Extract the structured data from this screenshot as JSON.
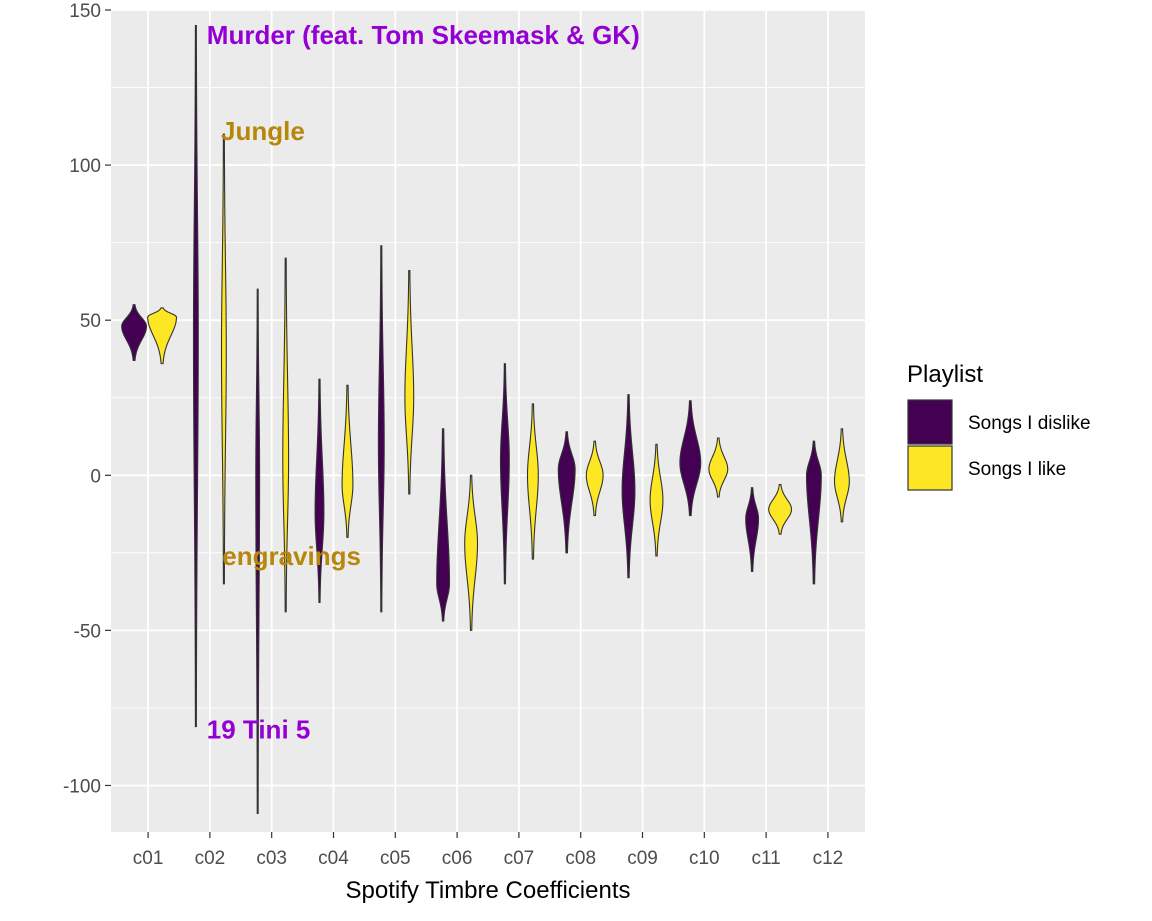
{
  "chart_data": {
    "type": "violin",
    "title": "",
    "xlabel": "Spotify Timbre Coefficients",
    "ylabel": "",
    "ylim": [
      -115,
      150
    ],
    "yticks": [
      150,
      100,
      50,
      0,
      -50,
      -100
    ],
    "ytick_labels": [
      "150",
      "100",
      "50",
      "0",
      "-50",
      "-100"
    ],
    "grid": true,
    "categories": [
      "c01",
      "c02",
      "c03",
      "c04",
      "c05",
      "c06",
      "c07",
      "c08",
      "c09",
      "c10",
      "c11",
      "c12"
    ],
    "legend": {
      "title": "Playlist",
      "position": "right",
      "entries": [
        {
          "name": "Songs I dislike",
          "color": "#440154"
        },
        {
          "name": "Songs I like",
          "color": "#fde725"
        }
      ]
    },
    "series": [
      {
        "name": "Songs I dislike",
        "color": "#440154",
        "violins": [
          {
            "min": 37,
            "max": 55,
            "mode": 48,
            "halfwidth": 12
          },
          {
            "min": -81,
            "max": 145,
            "mode": 45,
            "halfwidth": 2
          },
          {
            "min": -109,
            "max": 60,
            "mode": 0,
            "halfwidth": 1.5
          },
          {
            "min": -41,
            "max": 31,
            "mode": -12,
            "halfwidth": 4
          },
          {
            "min": -44,
            "max": 74,
            "mode": 10,
            "halfwidth": 2.5
          },
          {
            "min": -47,
            "max": 15,
            "mode": -35,
            "halfwidth": 6
          },
          {
            "min": -35,
            "max": 36,
            "mode": 5,
            "halfwidth": 4
          },
          {
            "min": -25,
            "max": 14,
            "mode": 2,
            "halfwidth": 8
          },
          {
            "min": -33,
            "max": 26,
            "mode": -5,
            "halfwidth": 6
          },
          {
            "min": -13,
            "max": 24,
            "mode": 4,
            "halfwidth": 10
          },
          {
            "min": -31,
            "max": -4,
            "mode": -14,
            "halfwidth": 6
          },
          {
            "min": -35,
            "max": 11,
            "mode": 0,
            "halfwidth": 7
          }
        ]
      },
      {
        "name": "Songs I like",
        "color": "#fde725",
        "violins": [
          {
            "min": 36,
            "max": 54,
            "mode": 51,
            "halfwidth": 14
          },
          {
            "min": -35,
            "max": 110,
            "mode": 40,
            "halfwidth": 2
          },
          {
            "min": -44,
            "max": 70,
            "mode": 5,
            "halfwidth": 2.5
          },
          {
            "min": -20,
            "max": 29,
            "mode": -3,
            "halfwidth": 5
          },
          {
            "min": -6,
            "max": 66,
            "mode": 25,
            "halfwidth": 4
          },
          {
            "min": -50,
            "max": 0,
            "mode": -22,
            "halfwidth": 6
          },
          {
            "min": -27,
            "max": 23,
            "mode": 0,
            "halfwidth": 5
          },
          {
            "min": -13,
            "max": 11,
            "mode": 0,
            "halfwidth": 8
          },
          {
            "min": -26,
            "max": 10,
            "mode": -8,
            "halfwidth": 6
          },
          {
            "min": -7,
            "max": 12,
            "mode": 2,
            "halfwidth": 9
          },
          {
            "min": -19,
            "max": -3,
            "mode": -11,
            "halfwidth": 11
          },
          {
            "min": -15,
            "max": 15,
            "mode": -2,
            "halfwidth": 7
          }
        ]
      }
    ],
    "annotations": [
      {
        "text": "Murder (feat. Tom Skeemask & GK)",
        "x": "c02",
        "x_offset": -0.05,
        "y": 142,
        "color": "#9400d3"
      },
      {
        "text": "Jungle",
        "x": "c02",
        "x_offset": 0.18,
        "y": 111,
        "color": "#b8860b"
      },
      {
        "text": "engravings",
        "x": "c02",
        "x_offset": 0.2,
        "y": -26,
        "color": "#b8860b"
      },
      {
        "text": "19 Tini 5",
        "x": "c02",
        "x_offset": -0.05,
        "y": -82,
        "color": "#9400d3"
      }
    ]
  }
}
